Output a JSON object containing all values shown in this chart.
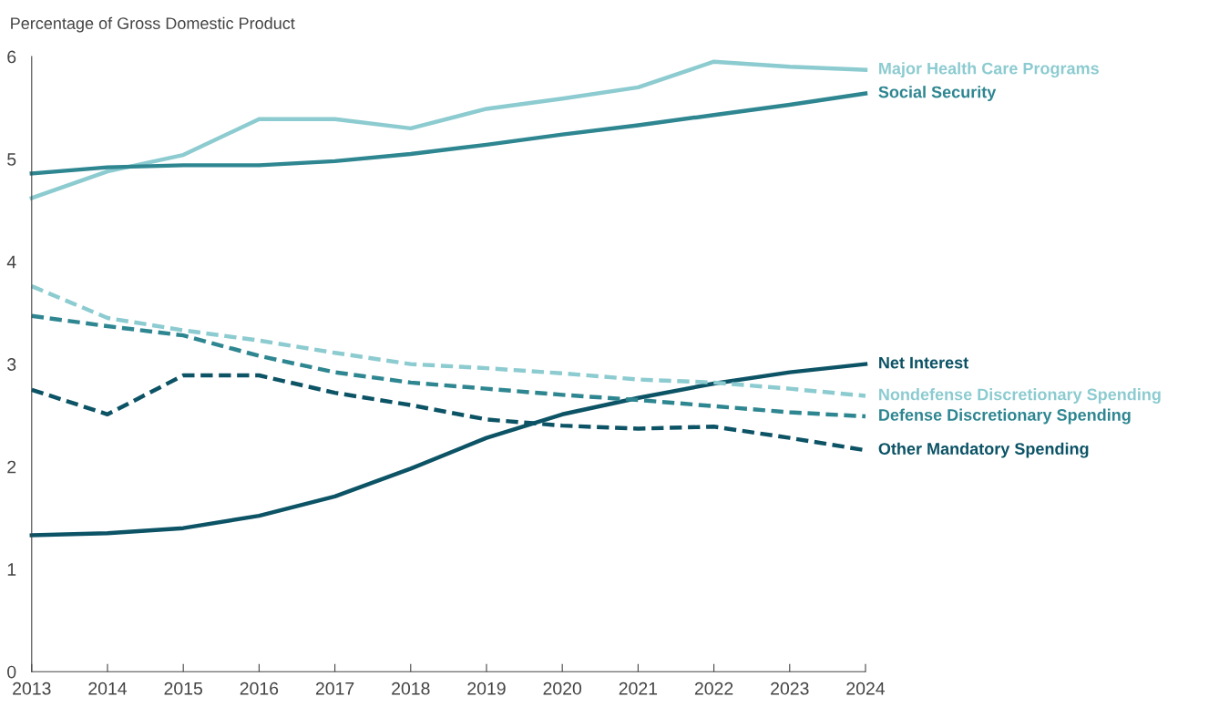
{
  "chart_data": {
    "type": "line",
    "ylabel": "Percentage of Gross Domestic Product",
    "x": [
      2013,
      2014,
      2015,
      2016,
      2017,
      2018,
      2019,
      2020,
      2021,
      2022,
      2023,
      2024
    ],
    "xlim": [
      2013,
      2024
    ],
    "xticks": [
      2013,
      2014,
      2015,
      2016,
      2017,
      2018,
      2019,
      2020,
      2021,
      2022,
      2023,
      2024
    ],
    "ylim": [
      0,
      6
    ],
    "yticks": [
      0,
      1,
      2,
      3,
      4,
      5,
      6
    ],
    "grid": false,
    "legend": false,
    "marker": "none",
    "series": [
      {
        "name": "Major Health Care Programs",
        "color": "#8ccbd0",
        "line_style": "solid",
        "values": [
          4.62,
          4.88,
          5.04,
          5.39,
          5.39,
          5.3,
          5.49,
          5.59,
          5.7,
          5.95,
          5.9,
          5.87
        ]
      },
      {
        "name": "Social Security",
        "color": "#2e8691",
        "line_style": "solid",
        "values": [
          4.86,
          4.92,
          4.94,
          4.94,
          4.98,
          5.05,
          5.14,
          5.24,
          5.33,
          5.43,
          5.53,
          5.64
        ]
      },
      {
        "name": "Net Interest",
        "color": "#0c5366",
        "line_style": "solid",
        "values": [
          1.33,
          1.35,
          1.4,
          1.52,
          1.71,
          1.98,
          2.28,
          2.51,
          2.67,
          2.81,
          2.92,
          3.0
        ]
      },
      {
        "name": "Nondefense Discretionary Spending",
        "color": "#8ccbd0",
        "line_style": "dashed",
        "values": [
          3.76,
          3.45,
          3.33,
          3.23,
          3.11,
          3.0,
          2.96,
          2.91,
          2.85,
          2.82,
          2.76,
          2.69
        ]
      },
      {
        "name": "Defense Discretionary Spending",
        "color": "#2e8691",
        "line_style": "dashed",
        "values": [
          3.47,
          3.37,
          3.28,
          3.08,
          2.92,
          2.82,
          2.76,
          2.7,
          2.65,
          2.59,
          2.53,
          2.49
        ]
      },
      {
        "name": "Other Mandatory Spending",
        "color": "#0c5366",
        "line_style": "dashed",
        "values": [
          2.75,
          2.51,
          2.89,
          2.89,
          2.72,
          2.6,
          2.46,
          2.4,
          2.37,
          2.39,
          2.28,
          2.16
        ]
      }
    ]
  }
}
